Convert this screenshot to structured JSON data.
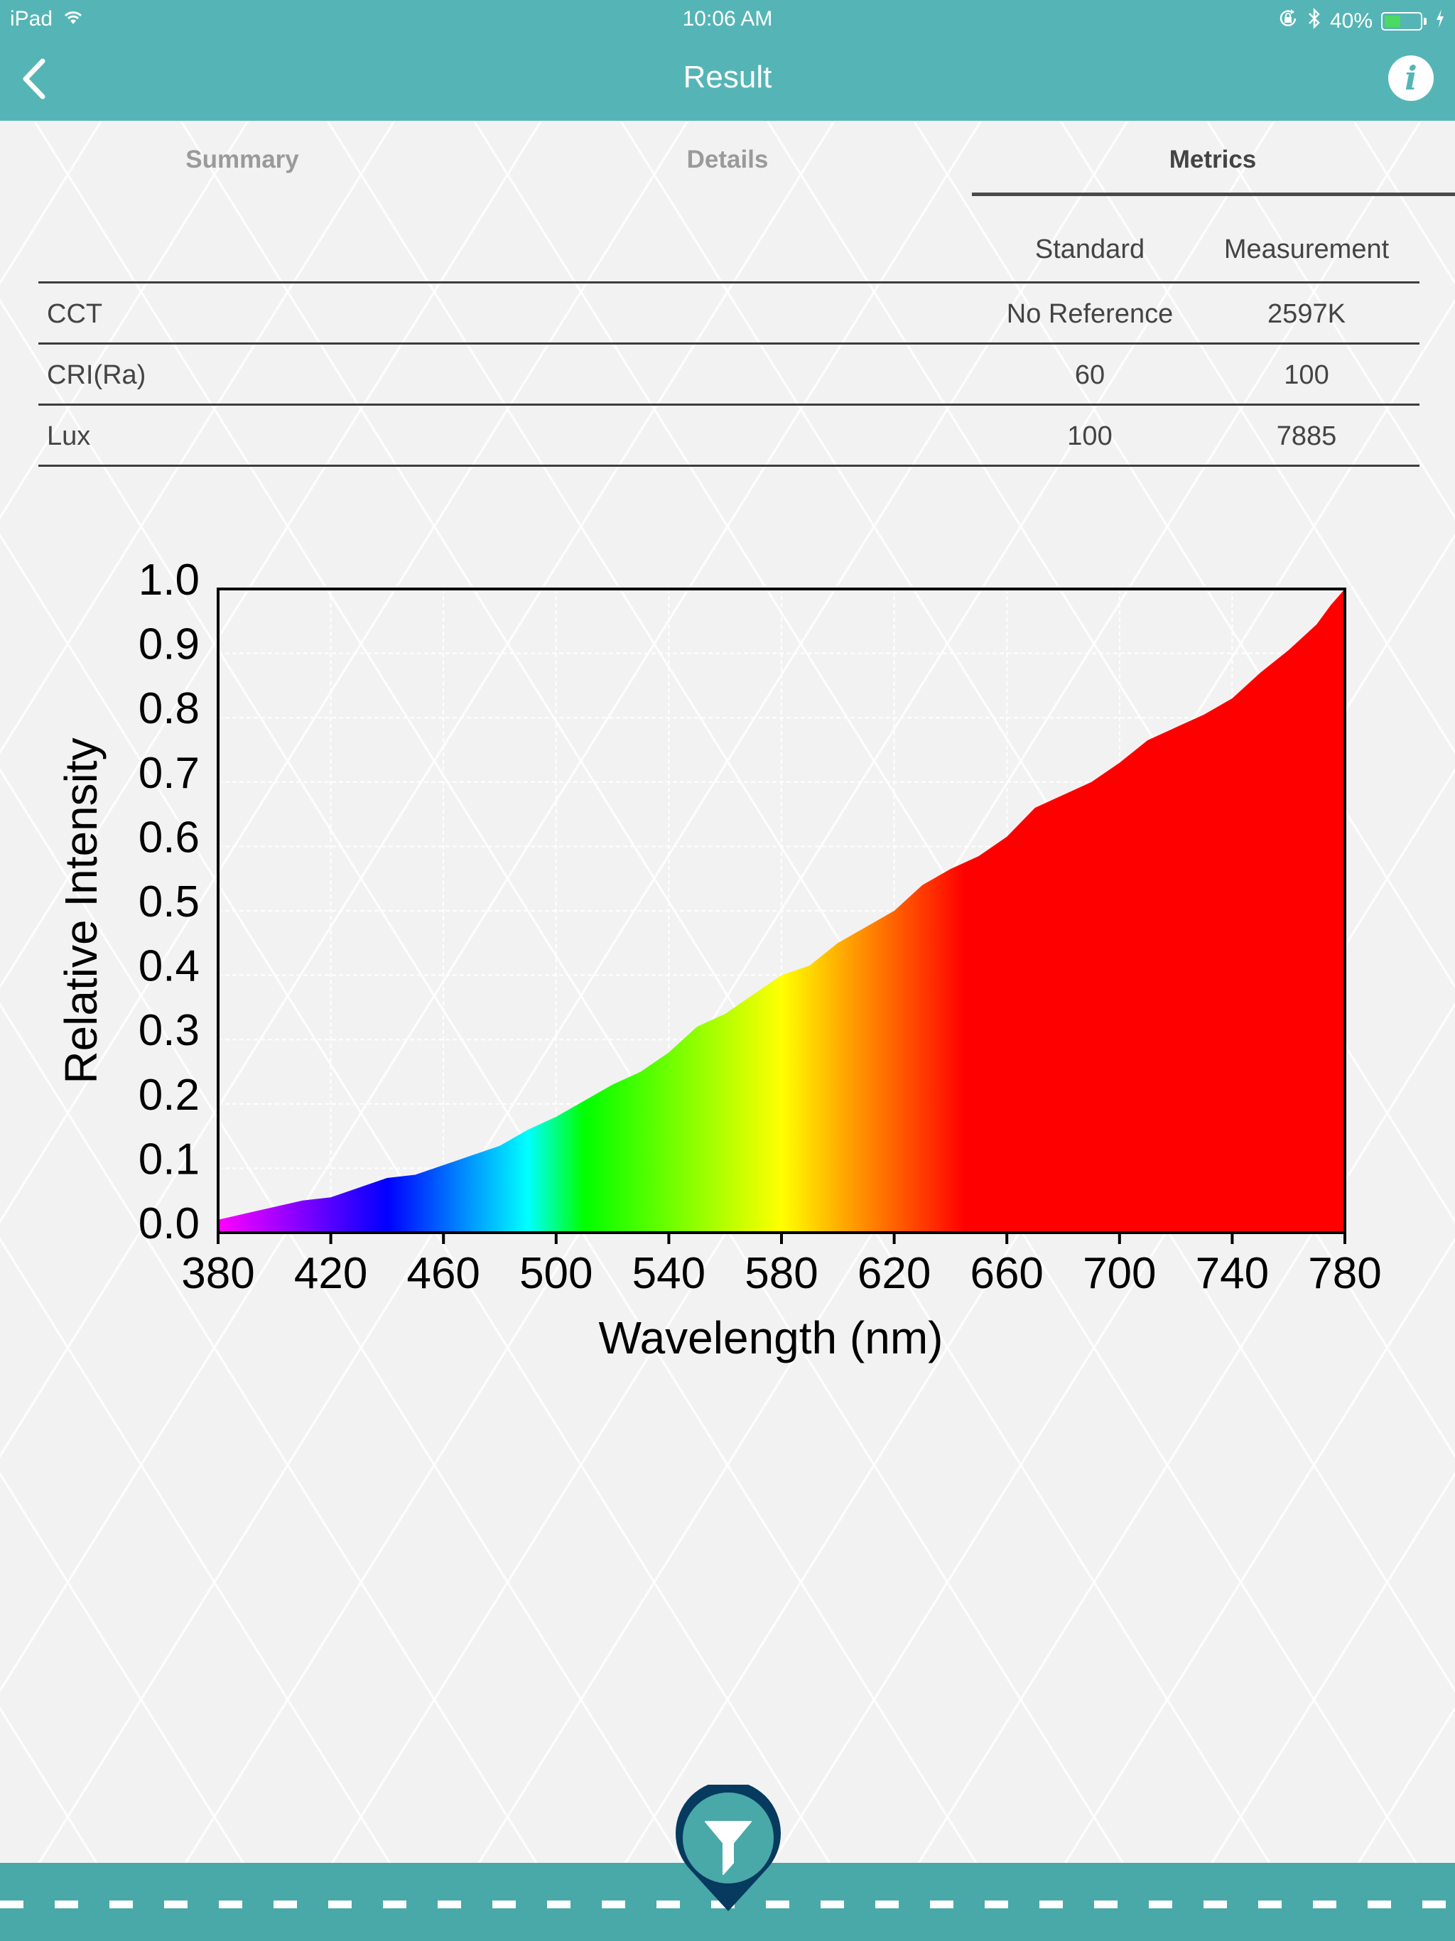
{
  "status_bar": {
    "device": "iPad",
    "time": "10:06 AM",
    "battery_percent": "40%",
    "icons": [
      "wifi-icon",
      "rotation-lock-icon",
      "bluetooth-icon",
      "battery-icon",
      "charging-bolt-icon"
    ]
  },
  "nav": {
    "title": "Result",
    "back_icon": "chevron-left-icon",
    "info_icon": "info-icon",
    "info_glyph": "i"
  },
  "tabs": [
    {
      "label": "Summary",
      "active": false
    },
    {
      "label": "Details",
      "active": false
    },
    {
      "label": "Metrics",
      "active": true
    }
  ],
  "metrics": {
    "columns": [
      "",
      "Standard",
      "Measurement"
    ],
    "rows": [
      {
        "label": "CCT",
        "standard": "No Reference",
        "measurement": "2597K"
      },
      {
        "label": "CRI(Ra)",
        "standard": "60",
        "measurement": "100"
      },
      {
        "label": "Lux",
        "standard": "100",
        "measurement": "7885"
      }
    ]
  },
  "chart_data": {
    "type": "area",
    "title": "",
    "xlabel": "Wavelength (nm)",
    "ylabel": "Relative Intensity",
    "xlim": [
      380,
      780
    ],
    "ylim": [
      0.0,
      1.0
    ],
    "xticks": [
      "380",
      "420",
      "460",
      "500",
      "540",
      "580",
      "620",
      "660",
      "700",
      "740",
      "780"
    ],
    "yticks": [
      "0.0",
      "0.1",
      "0.2",
      "0.3",
      "0.4",
      "0.5",
      "0.6",
      "0.7",
      "0.8",
      "0.9",
      "1.0"
    ],
    "grid": true,
    "legend": null,
    "fill": "visible-spectrum gradient",
    "x": [
      380,
      390,
      400,
      410,
      420,
      430,
      440,
      450,
      460,
      470,
      480,
      490,
      500,
      510,
      520,
      530,
      540,
      550,
      560,
      570,
      580,
      590,
      600,
      610,
      620,
      630,
      640,
      650,
      660,
      670,
      680,
      690,
      700,
      710,
      720,
      730,
      740,
      750,
      760,
      770,
      775,
      780
    ],
    "values": [
      0.02,
      0.03,
      0.04,
      0.05,
      0.055,
      0.07,
      0.085,
      0.09,
      0.105,
      0.12,
      0.135,
      0.16,
      0.18,
      0.205,
      0.23,
      0.25,
      0.28,
      0.32,
      0.34,
      0.37,
      0.4,
      0.415,
      0.45,
      0.475,
      0.5,
      0.54,
      0.565,
      0.585,
      0.615,
      0.66,
      0.68,
      0.7,
      0.73,
      0.765,
      0.785,
      0.805,
      0.83,
      0.87,
      0.905,
      0.945,
      0.975,
      1.0
    ],
    "gradient_stops": [
      {
        "nm": 380,
        "color": "#ff00ff"
      },
      {
        "nm": 440,
        "color": "#0000ff"
      },
      {
        "nm": 490,
        "color": "#00ffff"
      },
      {
        "nm": 510,
        "color": "#00ff00"
      },
      {
        "nm": 580,
        "color": "#ffff00"
      },
      {
        "nm": 645,
        "color": "#ff0000"
      },
      {
        "nm": 780,
        "color": "#ff0000"
      }
    ]
  },
  "bottom": {
    "filter_icon": "filter-icon"
  },
  "colors": {
    "header": "#55b5b6",
    "bottom_bar": "#48a9a8",
    "pin_ring": "#063a5e",
    "battery_fill": "#4cd964"
  }
}
